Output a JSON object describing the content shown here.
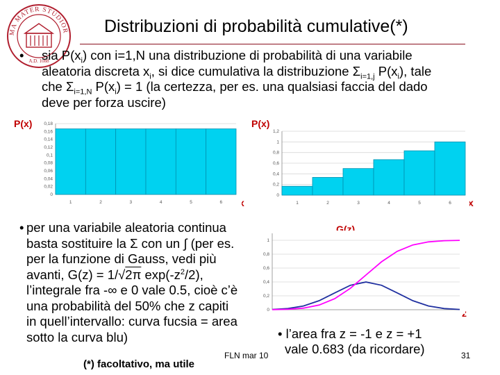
{
  "slide": {
    "title": "Distribuzioni di probabilità cumulative(*)",
    "bullet_symbol": "•",
    "bullet1": {
      "line1_a": "sia P(x",
      "line1_sub": "i",
      "line1_b": ") con i=1,N una distribuzione di probabilità di una variabile",
      "line2_a": "aleatoria discreta x",
      "line2_sub1": "i",
      "line2_b": ", si dice cumulativa la distribuzione Σ",
      "line2_sub2": "i=1,j",
      "line2_c": " P(x",
      "line2_sub3": "i",
      "line2_d": "), tale",
      "line3_a": "che Σ",
      "line3_sub1": "i=1,N",
      "line3_b": " P(x",
      "line3_sub2": "i",
      "line3_c": ") = 1 (la certezza, per es. una qualsiasi faccia del dado",
      "line4": "deve per forza uscire)"
    },
    "bullet2": {
      "line1": "per una variabile aleatoria continua",
      "line2": "basta sostituire la Σ con un ∫ (per es.",
      "line3": "per la funzione di Gauss, vedi più",
      "line4_a": "avanti, G(z) = 1/√",
      "line4_b": "2π",
      "line4_c": " exp(-z",
      "line4_sup": "2",
      "line4_d": "/2),",
      "line5": "l’integrale fra -∞ e 0 vale 0.5, cioè c’è",
      "line6": "una probabilità del 50% che z capiti",
      "line7": "in quell’intervallo: curva fucsia = area",
      "line8": "sotto la curva blu)"
    },
    "bullet3": {
      "line1": "l’area fra  z = -1 e z = +1",
      "line2": "vale  0.683 (da ricordare)"
    },
    "footer_center": "FLN mar 10",
    "footer_note": "(*) facoltativo, ma utile",
    "page_number": "31"
  },
  "labels": {
    "px_left": "P(x)",
    "px_right": "P(x)",
    "x_left": "x",
    "x_right": "x",
    "gz": "G(z)",
    "z": "z"
  },
  "logo": {
    "ring_text": "ALMA MATER STUDIORUM",
    "bottom_text": "A.D. 1088",
    "color": "#b01e2e"
  },
  "colors": {
    "bar_fill": "#00d2f0",
    "bar_stroke": "#0090b0",
    "axis_label": "#c00000",
    "gauss_curve": "#2030a0",
    "cumulative_curve": "#ff00ff"
  },
  "chart_data": [
    {
      "type": "bar",
      "categories": [
        "1",
        "2",
        "3",
        "4",
        "5",
        "6"
      ],
      "values": [
        0.1667,
        0.1667,
        0.1667,
        0.1667,
        0.1667,
        0.1667
      ],
      "yticks": [
        "0",
        "0,02",
        "0,04",
        "0,06",
        "0,08",
        "0,1",
        "0,12",
        "0,14",
        "0,16",
        "0,18"
      ],
      "ylim": [
        0,
        0.18
      ],
      "grid": true
    },
    {
      "type": "bar",
      "categories": [
        "1",
        "2",
        "3",
        "4",
        "5",
        "6"
      ],
      "values": [
        0.1667,
        0.3333,
        0.5,
        0.6667,
        0.8333,
        1.0
      ],
      "yticks": [
        "0",
        "0,2",
        "0,4",
        "0,6",
        "0,8",
        "1",
        "1,2"
      ],
      "ylim": [
        0,
        1.2
      ],
      "grid": true
    },
    {
      "type": "line",
      "x": [
        -3,
        -2.5,
        -2,
        -1.5,
        -1,
        -0.5,
        0,
        0.5,
        1,
        1.5,
        2,
        2.5,
        3
      ],
      "series": [
        {
          "values": [
            0.0044,
            0.0175,
            0.054,
            0.1295,
            0.242,
            0.3521,
            0.3989,
            0.3521,
            0.242,
            0.1295,
            0.054,
            0.0175,
            0.0044
          ]
        },
        {
          "values": [
            0.0013,
            0.0062,
            0.0228,
            0.0668,
            0.1587,
            0.3085,
            0.5,
            0.6915,
            0.8413,
            0.9332,
            0.9772,
            0.9938,
            0.9987
          ]
        }
      ],
      "yticks": [
        "0",
        "0,2",
        "0,4",
        "0,6",
        "0,8",
        "1"
      ],
      "ylim": [
        0,
        1.1
      ],
      "xlim": [
        -3,
        3
      ],
      "grid": true
    }
  ]
}
